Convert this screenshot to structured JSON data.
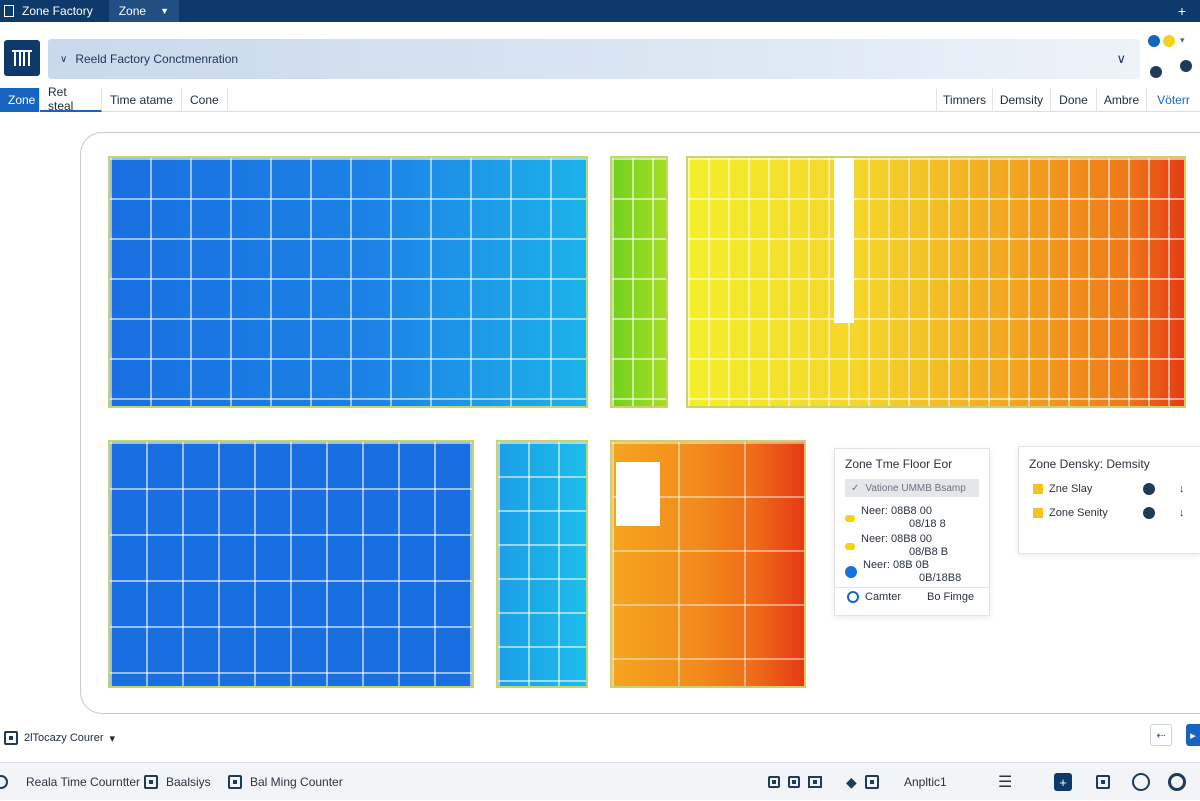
{
  "titlebar": {
    "app_title": "Zone Factory",
    "menu_label": "Zone",
    "caret": "▼",
    "plus": "+"
  },
  "breadcrumb": {
    "text": "Reeld Factory  Conctmenration",
    "chev_left": "∨",
    "chev_right": "∨"
  },
  "tabs_left": [
    {
      "label": "Zone"
    },
    {
      "label": "Ret steal"
    },
    {
      "label": "Time atame"
    },
    {
      "label": "Cone"
    }
  ],
  "tabs_right": [
    {
      "label": "Timners"
    },
    {
      "label": "Demsity"
    },
    {
      "label": "Done"
    },
    {
      "label": "Ambre"
    },
    {
      "label": "Vöterr"
    }
  ],
  "colors": {
    "brand": "#0d3a6b",
    "accent": "#1565c0",
    "blue": "#1a6fe0",
    "cyan": "#1bb7ea",
    "green": "#79d520",
    "yellow": "#f4ef2a",
    "orange": "#f39a1e",
    "red": "#e53b14"
  },
  "floor_panel": {
    "title": "Zone Tme Floor Eor",
    "selected_row": "Vatione UMMB Bsamp",
    "rows": [
      {
        "label": "Neer: 08B8   00",
        "sub": "08/18 8"
      },
      {
        "label": "Neer: 08B8   00",
        "sub": "08/B8 B"
      },
      {
        "label": "Neer: 08B   0B",
        "sub": "0B/18B8"
      }
    ],
    "footer_left": "Camter",
    "footer_right": "Bo Fimge"
  },
  "density_panel": {
    "title": "Zone Densky: Demsity",
    "rows": [
      {
        "label": "Zne Slay",
        "arrow": "↓"
      },
      {
        "label": "Zone Senity",
        "arrow": "↓"
      }
    ]
  },
  "bottom_select": {
    "label": "2lTocazy Courer",
    "caret": "▾"
  },
  "bottom_bar": {
    "items": [
      {
        "label": "Reala Time Courntter"
      },
      {
        "label": "Baalsiys"
      },
      {
        "label": "Bal Ming Counter"
      }
    ],
    "analytics": "Anpltic1"
  }
}
